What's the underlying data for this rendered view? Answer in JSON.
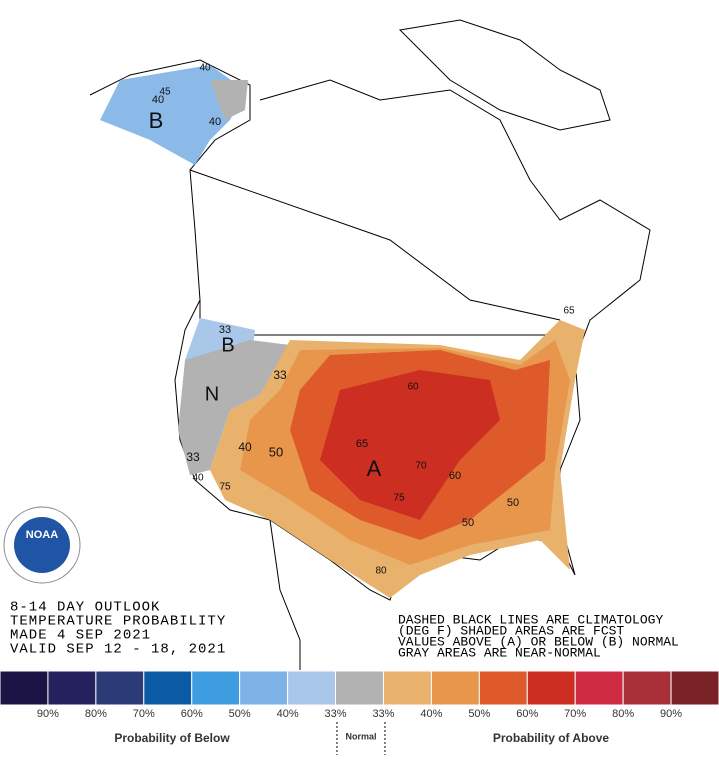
{
  "outlook": {
    "lines": [
      "8-14 DAY OUTLOOK",
      "TEMPERATURE PROBABILITY",
      "MADE  4 SEP 2021",
      "VALID  SEP 12 - 18, 2021"
    ]
  },
  "notes": {
    "lines": [
      "DASHED BLACK LINES ARE CLIMATOLOGY",
      "(DEG F) SHADED AREAS ARE FCST",
      "VALUES ABOVE (A) OR BELOW (B) NORMAL",
      "GRAY AREAS ARE NEAR-NORMAL"
    ]
  },
  "logo": {
    "text": "NOAA"
  },
  "map_labels": [
    "B",
    "40",
    "40",
    "45",
    "40",
    "B",
    "N",
    "33",
    "33",
    "40",
    "33",
    "40",
    "50",
    "75",
    "A",
    "65",
    "60",
    "70",
    "60",
    "75",
    "50",
    "50",
    "80",
    "65"
  ],
  "legend": {
    "colors": [
      "#1c1444",
      "#24215e",
      "#2c3b78",
      "#0b5aa6",
      "#3e9ce0",
      "#7fb2e6",
      "#a9c7e9",
      "#b2b2b2",
      "#e8b26c",
      "#e8964c",
      "#de5a2a",
      "#cc2e22",
      "#cf2c44",
      "#a82f36",
      "#7a2027"
    ],
    "labels": [
      "90%",
      "80%",
      "70%",
      "60%",
      "50%",
      "40%",
      "33%",
      "33%",
      "40%",
      "50%",
      "60%",
      "70%",
      "80%",
      "90%"
    ],
    "below": "Probability of Below",
    "normal": "Normal",
    "above": "Probability of Above"
  }
}
